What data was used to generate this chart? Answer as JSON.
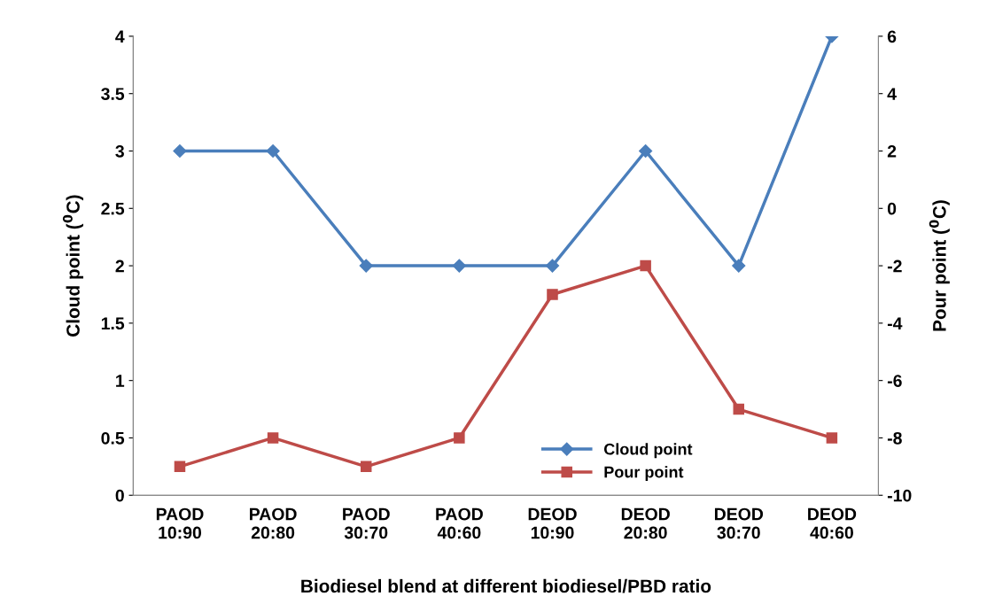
{
  "chart_data": {
    "type": "line",
    "xlabel": "Biodiesel blend at different biodiesel/PBD ratio",
    "ylabel": "Cloud point ($^{0}$C)",
    "y2label": "Pour point ($^{0}$C)",
    "categories": [
      "PAOD\n10:90",
      "PAOD\n20:80",
      "PAOD\n30:70",
      "PAOD\n40:60",
      "DEOD\n10:90",
      "DEOD\n20:80",
      "DEOD\n30:70",
      "DEOD\n40:60"
    ],
    "series": [
      {
        "name": "Cloud point",
        "color": "#4a7ebb",
        "marker": "diamond",
        "values": [
          3,
          3,
          2,
          2,
          2,
          3,
          2,
          4
        ]
      },
      {
        "name": "Pour point",
        "color": "#be4b48",
        "marker": "square",
        "axis": "y2",
        "values": [
          -9,
          -8,
          -9,
          -8,
          -3,
          -2,
          -7,
          -8
        ]
      }
    ],
    "ylim": [
      0,
      4
    ],
    "yticks": [
      0,
      0.5,
      1,
      1.5,
      2,
      2.5,
      3,
      3.5,
      4
    ],
    "y2lim": [
      -10,
      6
    ],
    "y2ticks": [
      -10,
      -8,
      -6,
      -4,
      -2,
      0,
      2,
      4,
      6
    ],
    "legend": "bottom",
    "grid": false
  }
}
